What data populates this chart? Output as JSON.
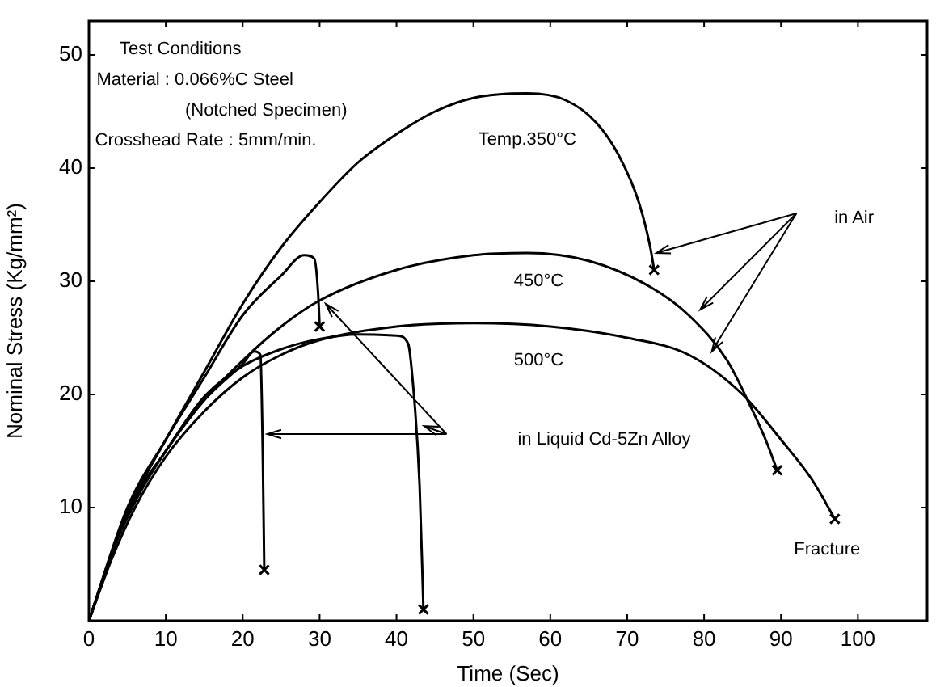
{
  "chart_data": {
    "type": "line",
    "xlabel": "Time (Sec)",
    "ylabel": "Nominal Stress (Kg/mm²)",
    "xlim": [
      0,
      109
    ],
    "ylim": [
      0,
      53
    ],
    "xticks": [
      0,
      10,
      20,
      30,
      40,
      50,
      60,
      70,
      80,
      90,
      100
    ],
    "yticks": [
      10,
      20,
      30,
      40,
      50
    ],
    "grid": false,
    "legend": false,
    "line_style": "solid",
    "series": [
      {
        "color": "#000000",
        "x": [
          0,
          3,
          6,
          10,
          15,
          20,
          25,
          30,
          35,
          40,
          45,
          50,
          57,
          62,
          66,
          69,
          71.5,
          73,
          73.5
        ],
        "values": [
          0,
          6,
          11,
          16,
          22,
          28,
          33,
          37,
          40.5,
          43,
          45,
          46.2,
          46.6,
          46,
          44,
          41,
          37,
          33,
          31
        ]
      },
      {
        "color": "#000000",
        "x": [
          0,
          3,
          6,
          10,
          15,
          20,
          25,
          30,
          40,
          50,
          57,
          65,
          73,
          78,
          83,
          86,
          88,
          89.5
        ],
        "values": [
          0,
          6,
          10.5,
          15,
          19.5,
          23,
          26,
          28.3,
          31,
          32.3,
          32.5,
          31.8,
          29.5,
          27,
          23,
          19,
          16,
          13.3
        ]
      },
      {
        "color": "#000000",
        "x": [
          0,
          3,
          6,
          10,
          15,
          20,
          25,
          30,
          40,
          50,
          60,
          70,
          78,
          85,
          90,
          94,
          97
        ],
        "values": [
          0,
          5.5,
          10,
          14.5,
          18.5,
          21.5,
          23.5,
          24.8,
          26,
          26.3,
          26,
          25,
          23.5,
          20,
          16,
          12.5,
          9
        ]
      },
      {
        "color": "#000000",
        "x": [
          0,
          5,
          10,
          15,
          20,
          25,
          28,
          29.3,
          29.8,
          30
        ],
        "values": [
          0,
          10,
          16,
          21.5,
          27,
          30.5,
          32.3,
          32,
          29,
          26
        ]
      },
      {
        "color": "#000000",
        "x": [
          0,
          5,
          10,
          15,
          20,
          21.5,
          22.3,
          22.6,
          22.8
        ],
        "values": [
          0,
          9.5,
          15,
          19.5,
          22.7,
          23.8,
          23.5,
          15,
          4.5
        ]
      },
      {
        "color": "#000000",
        "x": [
          0,
          5,
          10,
          15,
          20,
          25,
          30,
          35,
          40,
          41.5,
          42,
          43,
          43.5
        ],
        "values": [
          0,
          9.7,
          15,
          19.8,
          22.5,
          24,
          24.9,
          25.3,
          25.2,
          24.5,
          22,
          12,
          1
        ]
      },
      {
        "type": "scatter",
        "marker": "cross",
        "color": "#000000",
        "x": [
          73.5,
          89.5,
          97,
          30,
          22.8,
          43.5
        ],
        "values": [
          31,
          13.3,
          9,
          26,
          4.5,
          1
        ]
      }
    ],
    "annotations": [
      "Test Conditions",
      "Material : 0.066%C Steel",
      "(Notched Specimen)",
      "Crosshead Rate : 5mm/min.",
      "Temp.350°C",
      "450°C",
      "500°C",
      "in Air",
      "in Liquid Cd-5Zn Alloy",
      "Fracture"
    ]
  }
}
